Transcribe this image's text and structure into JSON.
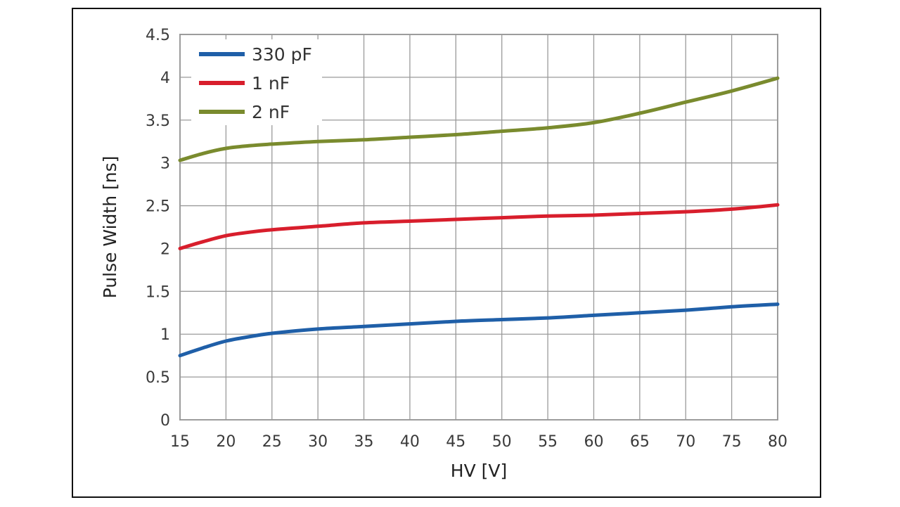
{
  "chart_data": {
    "type": "line",
    "xlabel": "HV [V]",
    "ylabel": "Pulse Width [ns]",
    "xlim": [
      15,
      80
    ],
    "ylim": [
      0,
      4.5
    ],
    "x_ticks": [
      "15",
      "20",
      "25",
      "30",
      "35",
      "40",
      "45",
      "50",
      "55",
      "60",
      "65",
      "70",
      "75",
      "80"
    ],
    "y_ticks": [
      "0",
      "0.5",
      "1",
      "1.5",
      "2",
      "2.5",
      "3",
      "3.5",
      "4",
      "4.5"
    ],
    "grid": true,
    "legend_position": "top-left",
    "series": [
      {
        "name": "330 pF",
        "color": "#1f5fa8",
        "points": [
          [
            15,
            0.75
          ],
          [
            17.5,
            0.84
          ],
          [
            20,
            0.92
          ],
          [
            22.5,
            0.97
          ],
          [
            25,
            1.01
          ],
          [
            30,
            1.06
          ],
          [
            35,
            1.09
          ],
          [
            40,
            1.12
          ],
          [
            45,
            1.15
          ],
          [
            50,
            1.17
          ],
          [
            55,
            1.19
          ],
          [
            60,
            1.22
          ],
          [
            65,
            1.25
          ],
          [
            70,
            1.28
          ],
          [
            75,
            1.32
          ],
          [
            80,
            1.35
          ]
        ]
      },
      {
        "name": "1 nF",
        "color": "#d81e2c",
        "points": [
          [
            15,
            2.0
          ],
          [
            17.5,
            2.08
          ],
          [
            20,
            2.15
          ],
          [
            22.5,
            2.19
          ],
          [
            25,
            2.22
          ],
          [
            30,
            2.26
          ],
          [
            35,
            2.3
          ],
          [
            40,
            2.32
          ],
          [
            45,
            2.34
          ],
          [
            50,
            2.36
          ],
          [
            55,
            2.38
          ],
          [
            60,
            2.39
          ],
          [
            65,
            2.41
          ],
          [
            70,
            2.43
          ],
          [
            75,
            2.46
          ],
          [
            80,
            2.51
          ]
        ]
      },
      {
        "name": "2 nF",
        "color": "#7a8b2e",
        "points": [
          [
            15,
            3.03
          ],
          [
            17.5,
            3.11
          ],
          [
            20,
            3.17
          ],
          [
            22.5,
            3.2
          ],
          [
            25,
            3.22
          ],
          [
            30,
            3.25
          ],
          [
            35,
            3.27
          ],
          [
            40,
            3.3
          ],
          [
            45,
            3.33
          ],
          [
            50,
            3.37
          ],
          [
            55,
            3.41
          ],
          [
            60,
            3.47
          ],
          [
            65,
            3.58
          ],
          [
            70,
            3.71
          ],
          [
            75,
            3.84
          ],
          [
            80,
            3.99
          ]
        ]
      }
    ]
  }
}
